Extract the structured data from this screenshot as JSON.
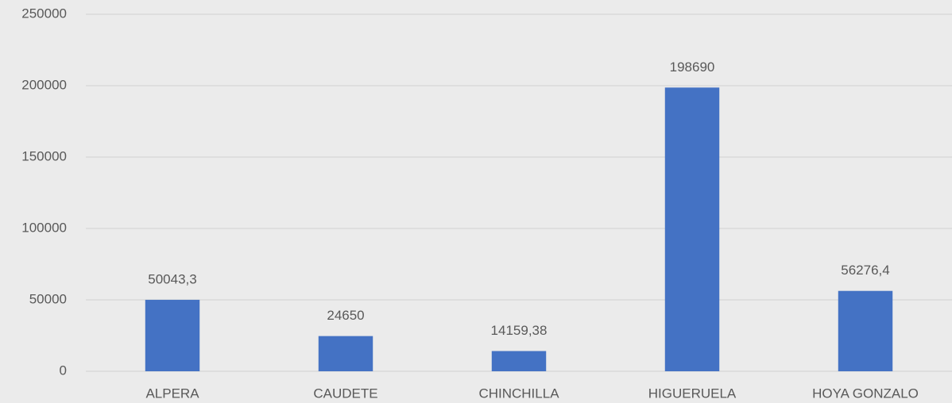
{
  "chart_data": {
    "type": "bar",
    "categories": [
      "ALPERA",
      "CAUDETE",
      "CHINCHILLA",
      "HIGUERUELA",
      "HOYA GONZALO"
    ],
    "values": [
      50043.3,
      24650,
      14159.38,
      198690,
      56276.4
    ],
    "value_labels": [
      "50043,3",
      "24650",
      "14159,38",
      "198690",
      "56276,4"
    ],
    "color": "#4472c4",
    "ylim": [
      0,
      250000
    ],
    "yticks": [
      0,
      50000,
      100000,
      150000,
      200000,
      250000
    ],
    "grid": true
  }
}
